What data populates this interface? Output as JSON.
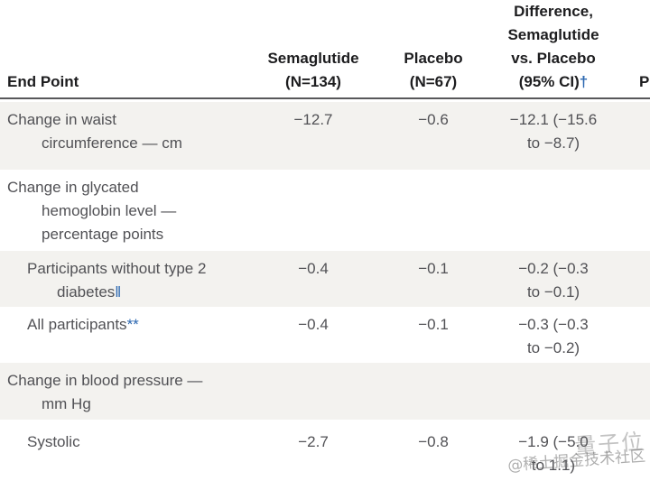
{
  "header": {
    "endpoint_label": "End Point",
    "semaglutide_lines": [
      "Semaglutide",
      "(N=134)"
    ],
    "placebo_lines": [
      "Placebo",
      "(N=67)"
    ],
    "difference_lines": [
      "Difference,",
      "Semaglutide",
      "vs. Placebo",
      "(95% CI)"
    ],
    "difference_footnote": "†",
    "p_value_label": "P"
  },
  "rows": [
    {
      "endpoint_line1": "Change in waist",
      "endpoint_line2": "circumference — cm",
      "semaglutide": "−12.7",
      "placebo": "−0.6",
      "difference_line1": "−12.1 (−15.6",
      "difference_line2": "to −8.7)"
    },
    {
      "endpoint_line1": "Change in glycated",
      "endpoint_line2": "hemoglobin level —",
      "endpoint_line3": "percentage points"
    },
    {
      "endpoint_line1": "Participants without type 2",
      "endpoint_line2": "diabetes",
      "endpoint_footnote": "‖",
      "semaglutide": "−0.4",
      "placebo": "−0.1",
      "difference_line1": "−0.2 (−0.3",
      "difference_line2": "to −0.1)"
    },
    {
      "endpoint_line1": "All participants",
      "endpoint_footnote": "**",
      "semaglutide": "−0.4",
      "placebo": "−0.1",
      "difference_line1": "−0.3 (−0.3",
      "difference_line2": "to −0.2)"
    },
    {
      "endpoint_line1": "Change in blood pressure —",
      "endpoint_line2": "mm Hg"
    },
    {
      "endpoint_line1": "Systolic",
      "semaglutide": "−2.7",
      "placebo": "−0.8",
      "difference_line1": "−1.9 (−5.0",
      "difference_line2": "to 1.1)"
    }
  ],
  "watermark": {
    "overlay_text": "量子位",
    "credit_text": "@稀土掘金技术社区"
  },
  "colors": {
    "accent_blue": "#2b67b0",
    "shaded_row_background": "#f3f2ef",
    "header_text": "#1d1d1f",
    "body_text": "#515155",
    "header_rule": "#58585a"
  }
}
